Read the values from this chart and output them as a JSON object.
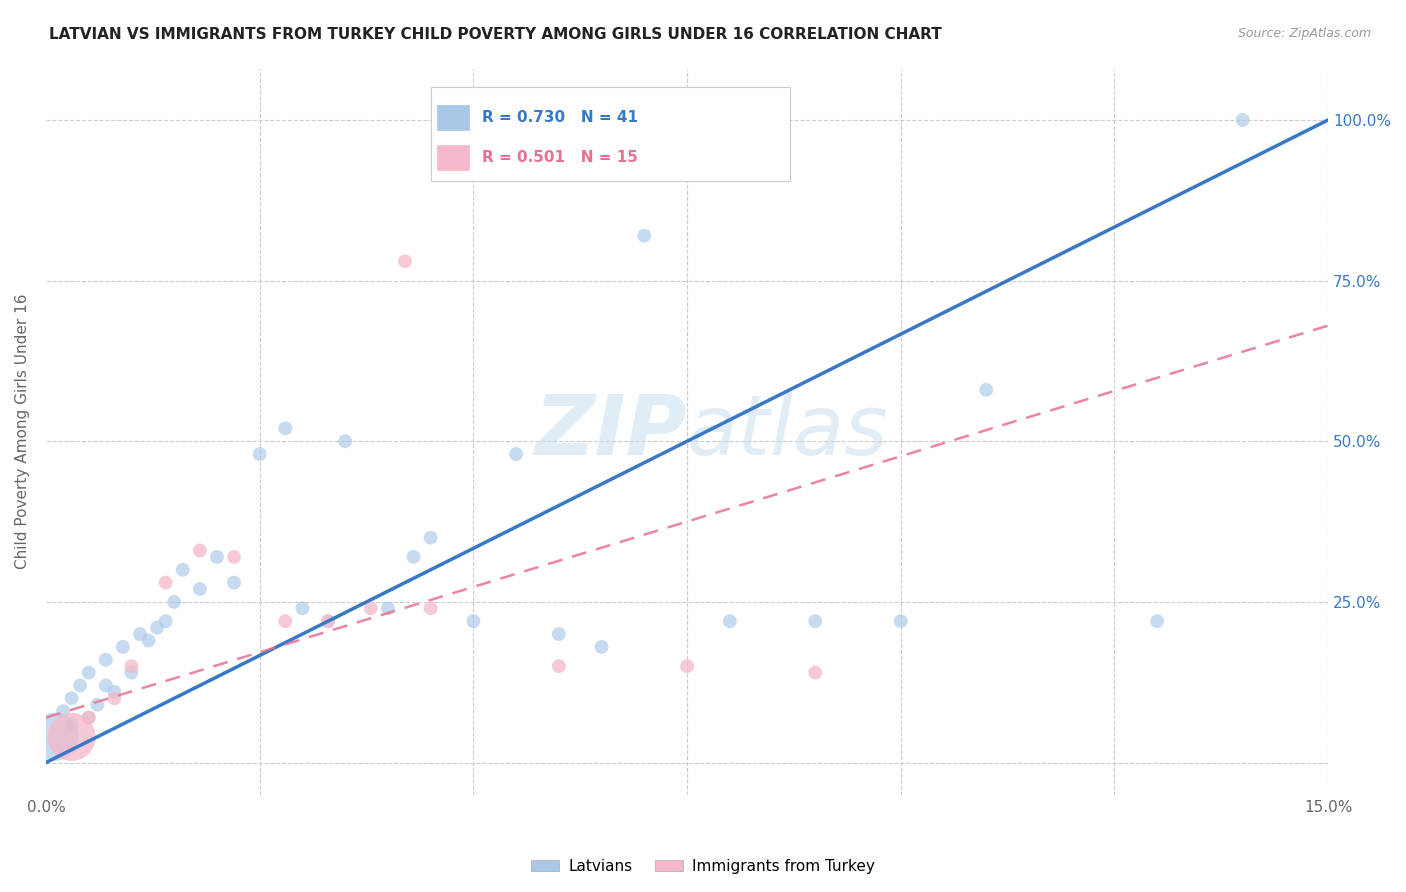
{
  "title": "LATVIAN VS IMMIGRANTS FROM TURKEY CHILD POVERTY AMONG GIRLS UNDER 16 CORRELATION CHART",
  "source": "Source: ZipAtlas.com",
  "ylabel": "Child Poverty Among Girls Under 16",
  "ytick_labels": [
    "",
    "25.0%",
    "50.0%",
    "75.0%",
    "100.0%"
  ],
  "ytick_values": [
    0,
    0.25,
    0.5,
    0.75,
    1.0
  ],
  "xlim": [
    0.0,
    0.15
  ],
  "ylim": [
    -0.05,
    1.08
  ],
  "latvian_R": 0.73,
  "latvian_N": 41,
  "turkey_R": 0.501,
  "turkey_N": 15,
  "latvian_color": "#a8c8e8",
  "turkey_color": "#f5b8c8",
  "latvian_line_color": "#3878c8",
  "turkey_line_color": "#e87090",
  "watermark_color": "#c8dff0",
  "latvian_x": [
    0.001,
    0.002,
    0.003,
    0.003,
    0.004,
    0.005,
    0.005,
    0.006,
    0.007,
    0.007,
    0.008,
    0.009,
    0.01,
    0.011,
    0.012,
    0.013,
    0.014,
    0.015,
    0.016,
    0.018,
    0.02,
    0.022,
    0.025,
    0.028,
    0.03,
    0.033,
    0.035,
    0.04,
    0.043,
    0.045,
    0.05,
    0.055,
    0.06,
    0.065,
    0.07,
    0.08,
    0.09,
    0.1,
    0.11,
    0.13,
    0.14
  ],
  "latvian_y": [
    0.04,
    0.08,
    0.06,
    0.1,
    0.12,
    0.07,
    0.14,
    0.09,
    0.12,
    0.16,
    0.11,
    0.18,
    0.14,
    0.2,
    0.19,
    0.21,
    0.22,
    0.25,
    0.3,
    0.27,
    0.32,
    0.28,
    0.48,
    0.52,
    0.24,
    0.22,
    0.5,
    0.24,
    0.32,
    0.35,
    0.22,
    0.48,
    0.2,
    0.18,
    0.82,
    0.22,
    0.22,
    0.22,
    0.58,
    0.22,
    1.0
  ],
  "latvian_sizes": [
    1200,
    100,
    100,
    100,
    100,
    100,
    100,
    100,
    100,
    100,
    100,
    100,
    100,
    100,
    100,
    100,
    100,
    100,
    100,
    100,
    100,
    100,
    100,
    100,
    100,
    100,
    100,
    100,
    100,
    100,
    100,
    100,
    100,
    100,
    100,
    100,
    100,
    100,
    100,
    100,
    100
  ],
  "turkey_x": [
    0.003,
    0.005,
    0.008,
    0.01,
    0.014,
    0.018,
    0.022,
    0.028,
    0.033,
    0.038,
    0.042,
    0.045,
    0.06,
    0.075,
    0.09
  ],
  "turkey_y": [
    0.04,
    0.07,
    0.1,
    0.15,
    0.28,
    0.33,
    0.32,
    0.22,
    0.22,
    0.24,
    0.78,
    0.24,
    0.15,
    0.15,
    0.14
  ],
  "turkey_sizes": [
    1200,
    100,
    100,
    100,
    100,
    100,
    100,
    100,
    100,
    100,
    100,
    100,
    100,
    100,
    100
  ],
  "latvian_line_x0": 0.0,
  "latvian_line_y0": 0.0,
  "latvian_line_x1": 0.15,
  "latvian_line_y1": 1.0,
  "turkey_line_x0": 0.0,
  "turkey_line_y0": 0.07,
  "turkey_line_x1": 0.15,
  "turkey_line_y1": 0.68
}
